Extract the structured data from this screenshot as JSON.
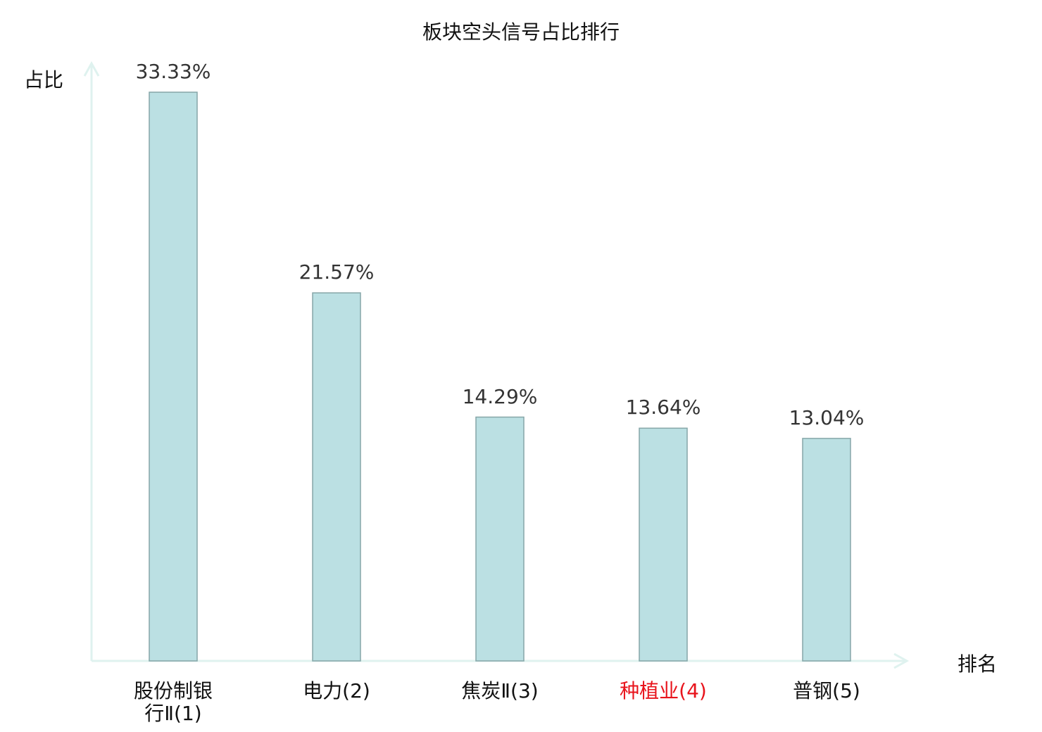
{
  "chart_data": {
    "type": "bar",
    "title": "板块空头信号占比排行",
    "xlabel": "排名",
    "ylabel": "占比",
    "categories": [
      "股份制银行Ⅱ(1)",
      "电力(2)",
      "焦炭Ⅱ(3)",
      "种植业(4)",
      "普钢(5)"
    ],
    "values": [
      33.33,
      21.57,
      14.29,
      13.64,
      13.04
    ],
    "value_labels": [
      "33.33%",
      "21.57%",
      "14.29%",
      "13.64%",
      "13.04%"
    ],
    "highlight_index": 3,
    "ylim": [
      0,
      35
    ],
    "grid": false,
    "colors": {
      "bar": "#bbe0e3",
      "bar_edge": "#86a6a8",
      "axis": "#dff2ef",
      "highlight": "#e8141c",
      "text": "#111111"
    }
  }
}
